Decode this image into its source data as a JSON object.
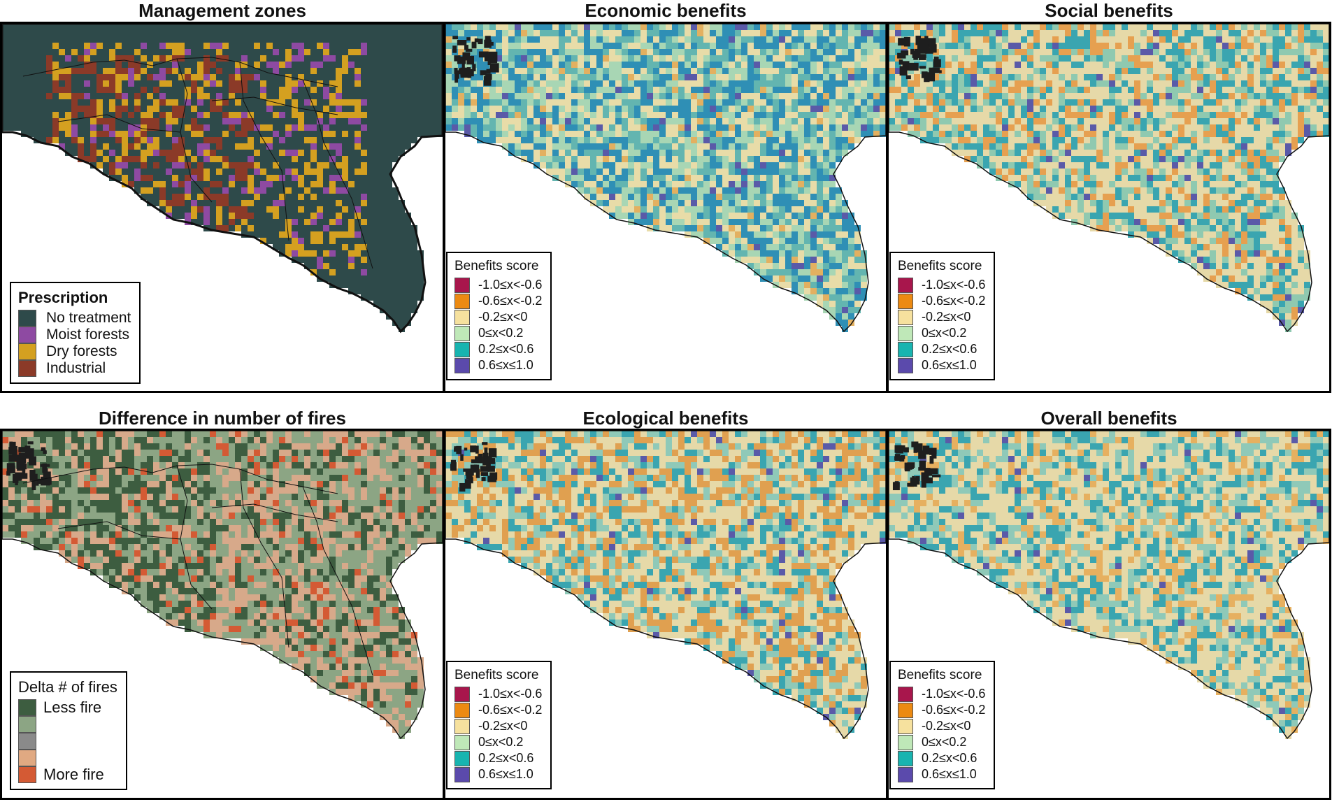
{
  "panels": [
    {
      "title": "Management zones",
      "kind": "zones"
    },
    {
      "title": "Economic benefits",
      "kind": "economic"
    },
    {
      "title": "Social benefits",
      "kind": "social"
    },
    {
      "title": "Difference in number of fires",
      "kind": "fires"
    },
    {
      "title": "Ecological benefits",
      "kind": "ecological"
    },
    {
      "title": "Overall benefits",
      "kind": "overall"
    }
  ],
  "prescription_legend": {
    "title": "Prescription",
    "items": [
      {
        "label": "No treatment",
        "color": "#2e4a4a"
      },
      {
        "label": "Moist forests",
        "color": "#8e4aa2"
      },
      {
        "label": "Dry forests",
        "color": "#d4a020"
      },
      {
        "label": "Industrial",
        "color": "#8b3a28"
      }
    ]
  },
  "benefits_legend": {
    "title": "Benefits score",
    "items": [
      {
        "label": "-1.0≤x<-0.6",
        "color": "#a8164c"
      },
      {
        "label": "-0.6≤x<-0.2",
        "color": "#ec8a12"
      },
      {
        "label": "-0.2≤x<0",
        "color": "#f6e19e"
      },
      {
        "label": "0≤x<0.2",
        "color": "#bfe8b8"
      },
      {
        "label": "0.2≤x<0.6",
        "color": "#18b4b0"
      },
      {
        "label": "0.6≤x≤1.0",
        "color": "#5b4aac"
      }
    ]
  },
  "fires_legend": {
    "title": "Delta # of fires",
    "items": [
      {
        "label": "Less fire",
        "color": "#3d5d40"
      },
      {
        "label": "",
        "color": "#8ca584"
      },
      {
        "label": "",
        "color": "#8a8a8a"
      },
      {
        "label": "",
        "color": "#e0a982"
      },
      {
        "label": "More fire",
        "color": "#d45a34"
      }
    ]
  }
}
